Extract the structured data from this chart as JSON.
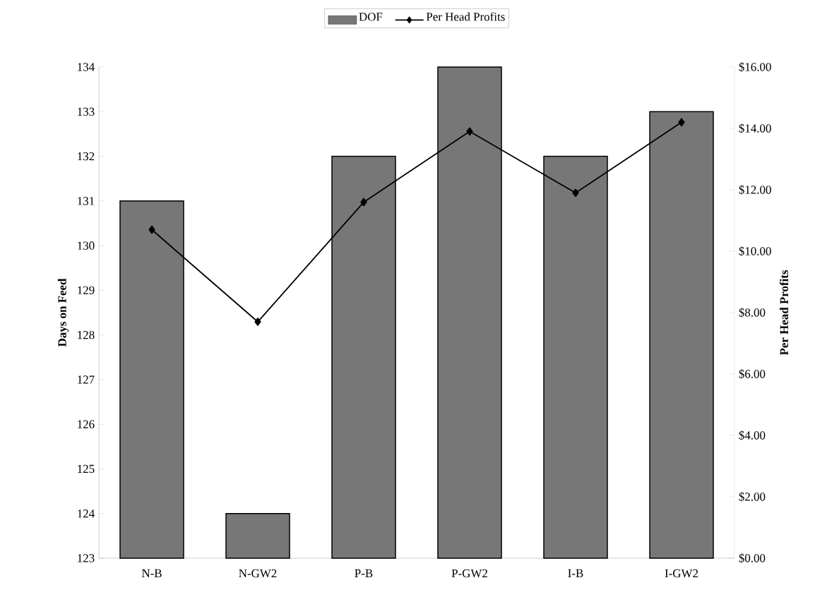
{
  "chart_data": {
    "type": "bar",
    "categories": [
      "N-B",
      "N-GW2",
      "P-B",
      "P-GW2",
      "I-B",
      "I-GW2"
    ],
    "series": [
      {
        "name": "DOF",
        "color": "#777777",
        "values": [
          131,
          124,
          132,
          134,
          132,
          133
        ]
      },
      {
        "name": "Per Head Profits",
        "type": "line",
        "axis": "y2",
        "color": "#000000",
        "marker": "diamond",
        "values": [
          10.7,
          7.7,
          11.6,
          13.9,
          11.9,
          14.2
        ]
      }
    ],
    "ylabel": "Days on Feed",
    "y2label": "Per Head Profits",
    "ylim": [
      123,
      134
    ],
    "yticks": [
      123,
      124,
      125,
      126,
      127,
      128,
      129,
      130,
      131,
      132,
      133,
      134
    ],
    "y2lim": [
      0,
      16
    ],
    "y2ticks": [
      {
        "value": 0,
        "label": "$0.00"
      },
      {
        "value": 2,
        "label": "$2.00"
      },
      {
        "value": 4,
        "label": "$4.00"
      },
      {
        "value": 6,
        "label": "$6.00"
      },
      {
        "value": 8,
        "label": "$8.00"
      },
      {
        "value": 10,
        "label": "$10.00"
      },
      {
        "value": 12,
        "label": "$12.00"
      },
      {
        "value": 14,
        "label": "$14.00"
      },
      {
        "value": 16,
        "label": "$16.00"
      }
    ],
    "legend": "top",
    "grid": false
  }
}
